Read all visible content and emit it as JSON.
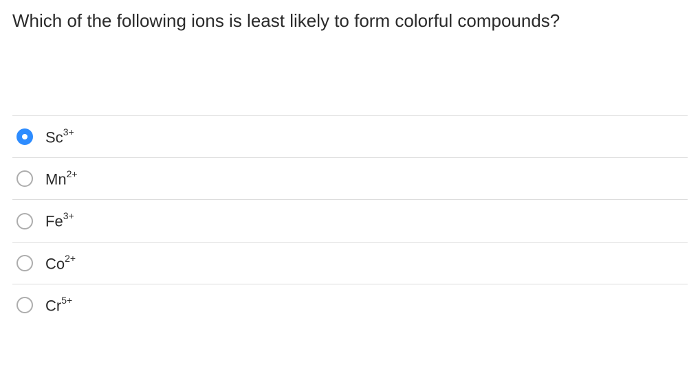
{
  "question": {
    "text": "Which of the following ions is least likely to form colorful compounds?",
    "fontsize": 26,
    "color": "#2a2a2a"
  },
  "selected_index": 0,
  "options": [
    {
      "element": "Sc",
      "charge": "3+"
    },
    {
      "element": "Mn",
      "charge": "2+"
    },
    {
      "element": "Fe",
      "charge": "3+"
    },
    {
      "element": "Co",
      "charge": "2+"
    },
    {
      "element": "Cr",
      "charge": "5+"
    }
  ],
  "styling": {
    "radio_selected_bg": "#2d8cff",
    "radio_unselected_border": "#adadad",
    "row_border": "#dcdcdc",
    "background": "#ffffff",
    "option_fontsize": 22,
    "sup_fontsize": 14
  }
}
